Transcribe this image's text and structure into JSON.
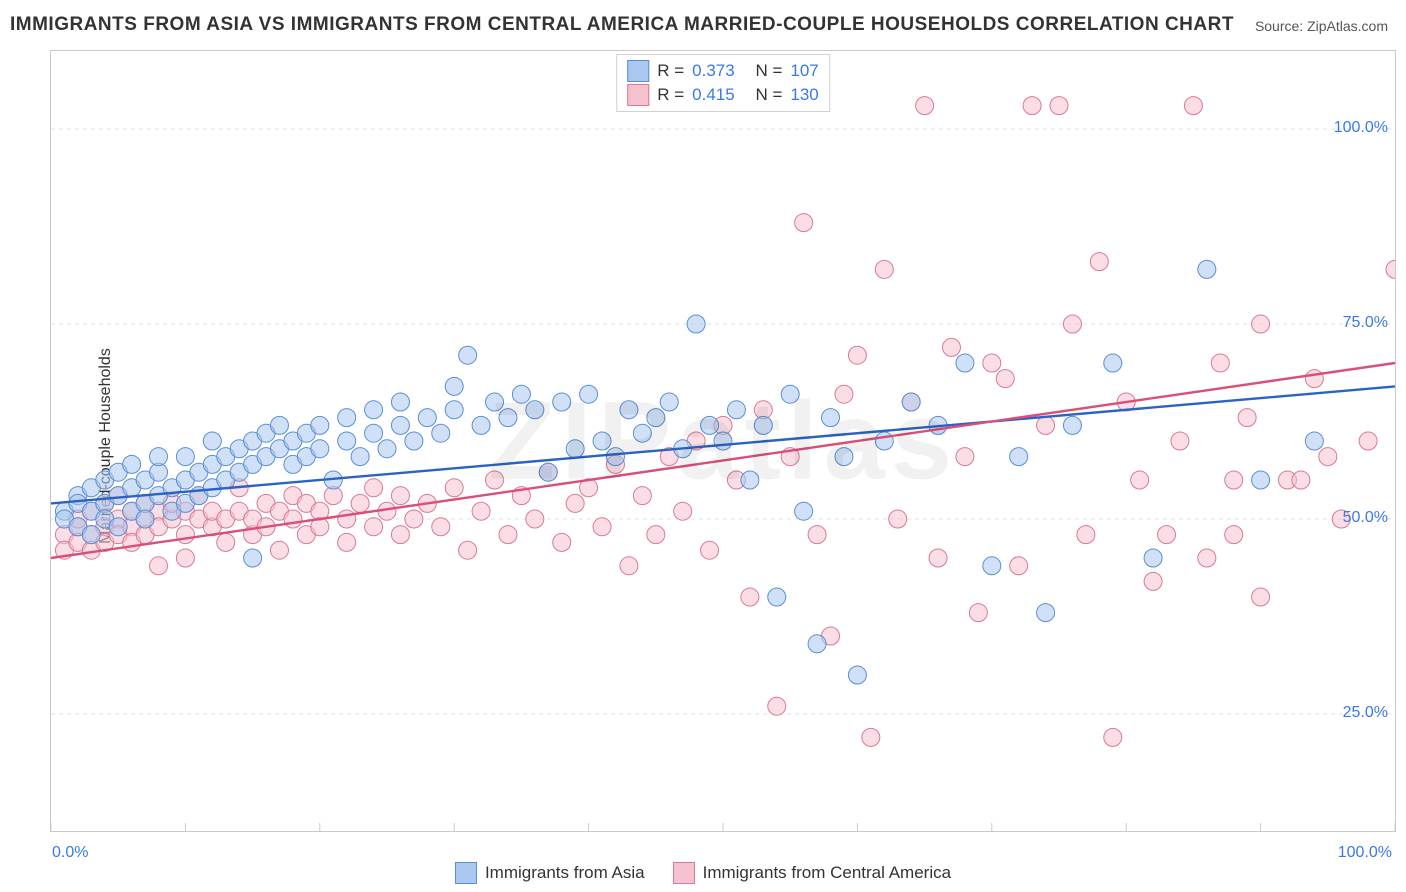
{
  "title": "IMMIGRANTS FROM ASIA VS IMMIGRANTS FROM CENTRAL AMERICA MARRIED-COUPLE HOUSEHOLDS CORRELATION CHART",
  "source_label": "Source: ",
  "source_value": "ZipAtlas.com",
  "watermark": "ZIPatlas",
  "ylabel": "Married-couple Households",
  "chart": {
    "type": "scatter",
    "xlim": [
      0,
      100
    ],
    "ylim": [
      10,
      110
    ],
    "x_ticks": [
      0,
      10,
      20,
      30,
      40,
      50,
      60,
      70,
      80,
      90,
      100
    ],
    "y_gridlines": [
      25,
      50,
      75,
      100
    ],
    "y_tick_labels": {
      "25": "25.0%",
      "50": "50.0%",
      "75": "75.0%",
      "100": "100.0%"
    },
    "x_min_label": "0.0%",
    "x_max_label": "100.0%",
    "background_color": "#ffffff",
    "grid_color": "#e2e2e2",
    "axis_color": "#c9c9c9",
    "marker_radius": 9,
    "marker_opacity": 0.55,
    "trend_line_width": 2.4,
    "series": [
      {
        "name": "Immigrants from Asia",
        "fill": "#a9c7ef",
        "stroke": "#5a8fd6",
        "line_color": "#2a63c4",
        "R": "0.373",
        "N": "107",
        "trend": {
          "x1": 0,
          "y1": 52,
          "x2": 100,
          "y2": 67
        },
        "points": [
          [
            1,
            51
          ],
          [
            1,
            50
          ],
          [
            2,
            53
          ],
          [
            2,
            49
          ],
          [
            2,
            52
          ],
          [
            3,
            51
          ],
          [
            3,
            54
          ],
          [
            3,
            48
          ],
          [
            4,
            52
          ],
          [
            4,
            55
          ],
          [
            4,
            50
          ],
          [
            5,
            53
          ],
          [
            5,
            56
          ],
          [
            5,
            49
          ],
          [
            6,
            54
          ],
          [
            6,
            51
          ],
          [
            6,
            57
          ],
          [
            7,
            52
          ],
          [
            7,
            55
          ],
          [
            7,
            50
          ],
          [
            8,
            56
          ],
          [
            8,
            53
          ],
          [
            8,
            58
          ],
          [
            9,
            54
          ],
          [
            9,
            51
          ],
          [
            10,
            55
          ],
          [
            10,
            58
          ],
          [
            10,
            52
          ],
          [
            11,
            56
          ],
          [
            11,
            53
          ],
          [
            12,
            57
          ],
          [
            12,
            60
          ],
          [
            12,
            54
          ],
          [
            13,
            58
          ],
          [
            13,
            55
          ],
          [
            14,
            59
          ],
          [
            14,
            56
          ],
          [
            15,
            60
          ],
          [
            15,
            57
          ],
          [
            15,
            45
          ],
          [
            16,
            58
          ],
          [
            16,
            61
          ],
          [
            17,
            59
          ],
          [
            17,
            62
          ],
          [
            18,
            60
          ],
          [
            18,
            57
          ],
          [
            19,
            61
          ],
          [
            19,
            58
          ],
          [
            20,
            62
          ],
          [
            20,
            59
          ],
          [
            21,
            55
          ],
          [
            22,
            60
          ],
          [
            22,
            63
          ],
          [
            23,
            58
          ],
          [
            24,
            61
          ],
          [
            24,
            64
          ],
          [
            25,
            59
          ],
          [
            26,
            62
          ],
          [
            26,
            65
          ],
          [
            27,
            60
          ],
          [
            28,
            63
          ],
          [
            29,
            61
          ],
          [
            30,
            64
          ],
          [
            30,
            67
          ],
          [
            31,
            71
          ],
          [
            32,
            62
          ],
          [
            33,
            65
          ],
          [
            34,
            63
          ],
          [
            35,
            66
          ],
          [
            36,
            64
          ],
          [
            37,
            56
          ],
          [
            38,
            65
          ],
          [
            39,
            59
          ],
          [
            40,
            66
          ],
          [
            41,
            60
          ],
          [
            42,
            58
          ],
          [
            43,
            64
          ],
          [
            44,
            61
          ],
          [
            45,
            63
          ],
          [
            46,
            65
          ],
          [
            47,
            59
          ],
          [
            48,
            75
          ],
          [
            49,
            62
          ],
          [
            50,
            60
          ],
          [
            51,
            64
          ],
          [
            52,
            55
          ],
          [
            53,
            62
          ],
          [
            54,
            40
          ],
          [
            55,
            66
          ],
          [
            56,
            51
          ],
          [
            57,
            34
          ],
          [
            58,
            63
          ],
          [
            59,
            58
          ],
          [
            60,
            30
          ],
          [
            62,
            60
          ],
          [
            64,
            65
          ],
          [
            66,
            62
          ],
          [
            68,
            70
          ],
          [
            70,
            44
          ],
          [
            72,
            58
          ],
          [
            74,
            38
          ],
          [
            76,
            62
          ],
          [
            79,
            70
          ],
          [
            82,
            45
          ],
          [
            86,
            82
          ],
          [
            90,
            55
          ],
          [
            94,
            60
          ]
        ]
      },
      {
        "name": "Immigrants from Central America",
        "fill": "#f6c1cf",
        "stroke": "#da7a94",
        "line_color": "#d94f75",
        "R": "0.415",
        "N": "130",
        "trend": {
          "x1": 0,
          "y1": 45,
          "x2": 100,
          "y2": 70
        },
        "points": [
          [
            1,
            48
          ],
          [
            1,
            46
          ],
          [
            2,
            49
          ],
          [
            2,
            47
          ],
          [
            2,
            50
          ],
          [
            3,
            48
          ],
          [
            3,
            51
          ],
          [
            3,
            46
          ],
          [
            4,
            49
          ],
          [
            4,
            52
          ],
          [
            4,
            47
          ],
          [
            5,
            50
          ],
          [
            5,
            48
          ],
          [
            5,
            53
          ],
          [
            6,
            49
          ],
          [
            6,
            51
          ],
          [
            6,
            47
          ],
          [
            7,
            50
          ],
          [
            7,
            52
          ],
          [
            7,
            48
          ],
          [
            8,
            51
          ],
          [
            8,
            49
          ],
          [
            8,
            44
          ],
          [
            9,
            50
          ],
          [
            9,
            52
          ],
          [
            10,
            45
          ],
          [
            10,
            51
          ],
          [
            10,
            48
          ],
          [
            11,
            50
          ],
          [
            11,
            53
          ],
          [
            12,
            49
          ],
          [
            12,
            51
          ],
          [
            13,
            50
          ],
          [
            13,
            47
          ],
          [
            14,
            51
          ],
          [
            14,
            54
          ],
          [
            15,
            48
          ],
          [
            15,
            50
          ],
          [
            16,
            52
          ],
          [
            16,
            49
          ],
          [
            17,
            51
          ],
          [
            17,
            46
          ],
          [
            18,
            50
          ],
          [
            18,
            53
          ],
          [
            19,
            48
          ],
          [
            19,
            52
          ],
          [
            20,
            51
          ],
          [
            20,
            49
          ],
          [
            21,
            53
          ],
          [
            22,
            47
          ],
          [
            22,
            50
          ],
          [
            23,
            52
          ],
          [
            24,
            49
          ],
          [
            24,
            54
          ],
          [
            25,
            51
          ],
          [
            26,
            48
          ],
          [
            26,
            53
          ],
          [
            27,
            50
          ],
          [
            28,
            52
          ],
          [
            29,
            49
          ],
          [
            30,
            54
          ],
          [
            31,
            46
          ],
          [
            32,
            51
          ],
          [
            33,
            55
          ],
          [
            34,
            48
          ],
          [
            35,
            53
          ],
          [
            36,
            50
          ],
          [
            37,
            56
          ],
          [
            38,
            47
          ],
          [
            39,
            52
          ],
          [
            40,
            54
          ],
          [
            41,
            49
          ],
          [
            42,
            57
          ],
          [
            43,
            44
          ],
          [
            44,
            53
          ],
          [
            45,
            48
          ],
          [
            46,
            58
          ],
          [
            47,
            51
          ],
          [
            48,
            60
          ],
          [
            49,
            46
          ],
          [
            50,
            62
          ],
          [
            51,
            55
          ],
          [
            52,
            40
          ],
          [
            53,
            64
          ],
          [
            54,
            26
          ],
          [
            55,
            58
          ],
          [
            56,
            88
          ],
          [
            57,
            48
          ],
          [
            58,
            35
          ],
          [
            59,
            66
          ],
          [
            60,
            71
          ],
          [
            61,
            22
          ],
          [
            62,
            82
          ],
          [
            63,
            50
          ],
          [
            64,
            65
          ],
          [
            65,
            103
          ],
          [
            66,
            45
          ],
          [
            67,
            72
          ],
          [
            68,
            58
          ],
          [
            69,
            38
          ],
          [
            70,
            70
          ],
          [
            71,
            68
          ],
          [
            72,
            44
          ],
          [
            73,
            103
          ],
          [
            74,
            62
          ],
          [
            75,
            103
          ],
          [
            76,
            75
          ],
          [
            77,
            48
          ],
          [
            78,
            83
          ],
          [
            79,
            22
          ],
          [
            80,
            65
          ],
          [
            81,
            55
          ],
          [
            82,
            42
          ],
          [
            83,
            48
          ],
          [
            84,
            60
          ],
          [
            85,
            103
          ],
          [
            86,
            45
          ],
          [
            87,
            70
          ],
          [
            88,
            55
          ],
          [
            89,
            63
          ],
          [
            90,
            40
          ],
          [
            92,
            55
          ],
          [
            94,
            68
          ],
          [
            96,
            50
          ],
          [
            98,
            60
          ],
          [
            100,
            82
          ],
          [
            90,
            75
          ],
          [
            95,
            58
          ],
          [
            88,
            48
          ],
          [
            93,
            55
          ]
        ]
      }
    ]
  },
  "legend_top": {
    "r_label": "R =",
    "n_label": "N ="
  },
  "legend_bottom": {
    "items": [
      {
        "name": "Immigrants from Asia",
        "fill": "#a9c7ef",
        "stroke": "#5a8fd6"
      },
      {
        "name": "Immigrants from Central America",
        "fill": "#f6c1cf",
        "stroke": "#da7a94"
      }
    ]
  }
}
